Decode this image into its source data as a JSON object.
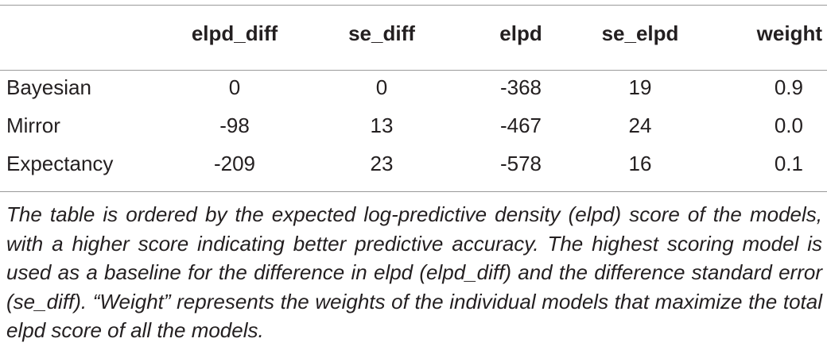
{
  "table": {
    "columns": [
      "",
      "elpd_diff",
      "se_diff",
      "elpd",
      "se_elpd",
      "weight"
    ],
    "rows": [
      {
        "model": "Bayesian",
        "elpd_diff": "0",
        "se_diff": "0",
        "elpd": "-368",
        "se_elpd": "19",
        "weight": "0.9"
      },
      {
        "model": "Mirror",
        "elpd_diff": "-98",
        "se_diff": "13",
        "elpd": "-467",
        "se_elpd": "24",
        "weight": "0.0"
      },
      {
        "model": "Expectancy",
        "elpd_diff": "-209",
        "se_diff": "23",
        "elpd": "-578",
        "se_elpd": "16",
        "weight": "0.1"
      }
    ]
  },
  "caption": "The table is ordered by the expected log-predictive density (elpd) score of the models, with a higher score indicating better predictive accuracy. The highest scoring model is used as a baseline for the difference in elpd (elpd_diff) and the difference standard error (se_diff). “Weight” represents the weights of the individual models that maximize the total elpd score of all the models."
}
